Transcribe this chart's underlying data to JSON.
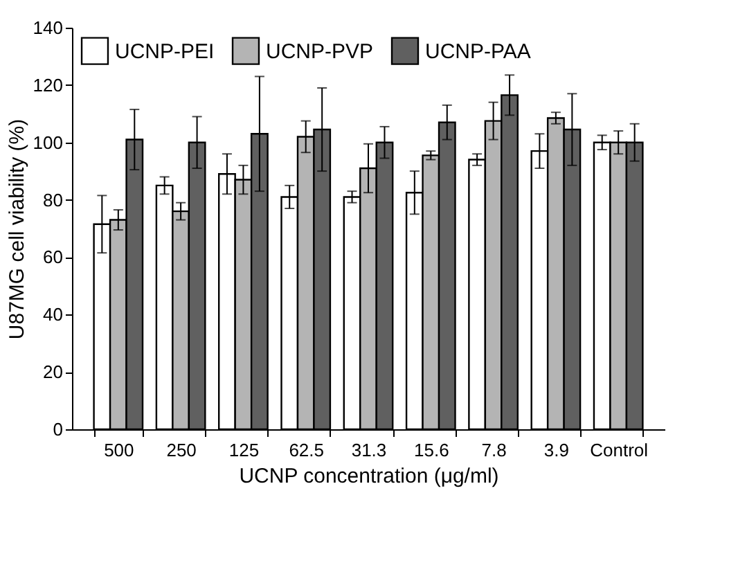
{
  "chart_data": {
    "type": "bar",
    "xlabel": "UCNP concentration (μg/ml)",
    "ylabel": "U87MG cell viability (%)",
    "categories": [
      "500",
      "250",
      "125",
      "62.5",
      "31.3",
      "15.6",
      "7.8",
      "3.9",
      "Control"
    ],
    "series": [
      {
        "name": "UCNP-PEI",
        "color": "#ffffff",
        "values": [
          71.5,
          85,
          89,
          81,
          81,
          82.5,
          94,
          97,
          100
        ],
        "errors": [
          10,
          3,
          7,
          4,
          2,
          7.5,
          2,
          6,
          2.5
        ]
      },
      {
        "name": "UCNP-PVP",
        "color": "#b4b4b4",
        "values": [
          73,
          76,
          87,
          102,
          91,
          95.5,
          107.5,
          108.5,
          100
        ],
        "errors": [
          3.5,
          3,
          5,
          5.5,
          8.5,
          1.5,
          6.5,
          2,
          4
        ]
      },
      {
        "name": "UCNP-PAA",
        "color": "#606060",
        "values": [
          101,
          100,
          103,
          104.5,
          100,
          107,
          116.5,
          104.5,
          100
        ],
        "errors": [
          10.5,
          9,
          20,
          14.5,
          5.5,
          6,
          7,
          12.5,
          6.5
        ]
      }
    ],
    "ylim": [
      0,
      140
    ],
    "yticks": [
      0,
      20,
      40,
      60,
      80,
      100,
      120,
      140
    ],
    "grid": false,
    "legend": "top left"
  }
}
